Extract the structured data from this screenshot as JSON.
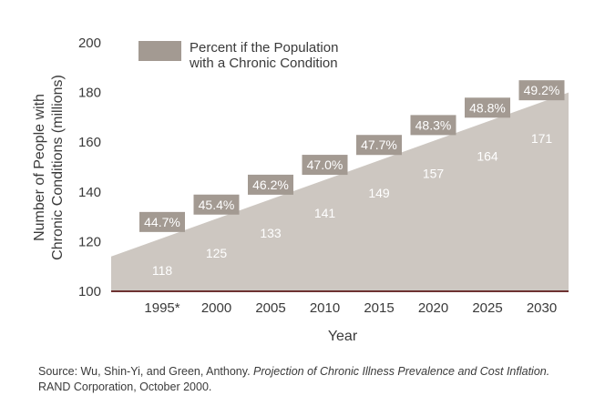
{
  "colors": {
    "area": "#cdc7c1",
    "label_box": "#a39a92",
    "axis": "#6e3232",
    "text": "#3a3a3a",
    "value_text": "#ffffff"
  },
  "chart_data": {
    "type": "area",
    "title": "",
    "xlabel": "Year",
    "ylabel": "Number of People with Chronic Conditions (millions)",
    "ylabel_lines": [
      "Number of People with",
      "Chronic Conditions (millions)"
    ],
    "categories": [
      "1995*",
      "2000",
      "2005",
      "2010",
      "2015",
      "2020",
      "2025",
      "2030"
    ],
    "values": [
      118,
      125,
      133,
      141,
      149,
      157,
      164,
      171
    ],
    "value_labels": [
      "118",
      "125",
      "133",
      "141",
      "149",
      "157",
      "164",
      "171"
    ],
    "percent_labels": [
      "44.7%",
      "45.4%",
      "46.2%",
      "47.0%",
      "47.7%",
      "48.3%",
      "48.8%",
      "49.2%"
    ],
    "series": [
      {
        "name": "Percent if the Population with a Chronic Condition",
        "name_lines": [
          "Percent if the Population",
          "with a Chronic Condition"
        ]
      }
    ],
    "area_left_value": 114,
    "area_right_value": 180,
    "ylim": [
      100,
      200
    ],
    "yticks": [
      "100",
      "120",
      "140",
      "160",
      "180",
      "200"
    ],
    "legend_position": "top-left",
    "grid": false
  },
  "source": {
    "prefix": "Source: Wu, Shin-Yi, and Green, Anthony.",
    "title": "Projection of Chronic Illness Prevalence and Cost Inflation.",
    "suffix": "RAND Corporation, October 2000."
  }
}
